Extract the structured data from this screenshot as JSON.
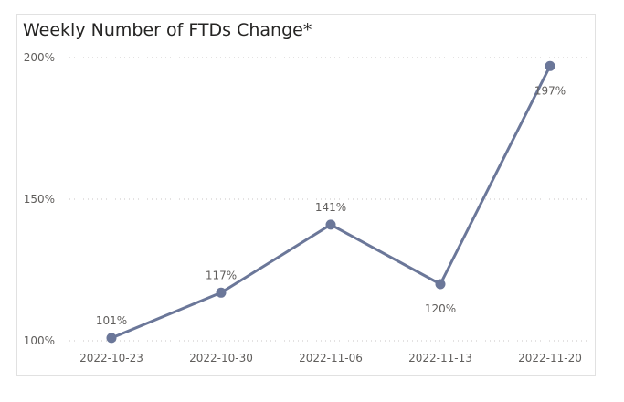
{
  "chart_data": {
    "type": "line",
    "title": "Weekly Number of FTDs Change*",
    "xlabel": "",
    "ylabel": "",
    "categories": [
      "2022-10-23",
      "2022-10-30",
      "2022-11-06",
      "2022-11-13",
      "2022-11-20"
    ],
    "series": [
      {
        "values": [
          101,
          117,
          141,
          120,
          197
        ],
        "data_labels": [
          "101%",
          "117%",
          "141%",
          "120%",
          "197%"
        ],
        "color": "#6b7799"
      }
    ],
    "ylim": [
      100,
      200
    ],
    "yticks": [
      100,
      150,
      200
    ],
    "ytick_labels": [
      "100%",
      "150%",
      "200%"
    ],
    "grid": "horizontal dotted",
    "legend": "none"
  }
}
